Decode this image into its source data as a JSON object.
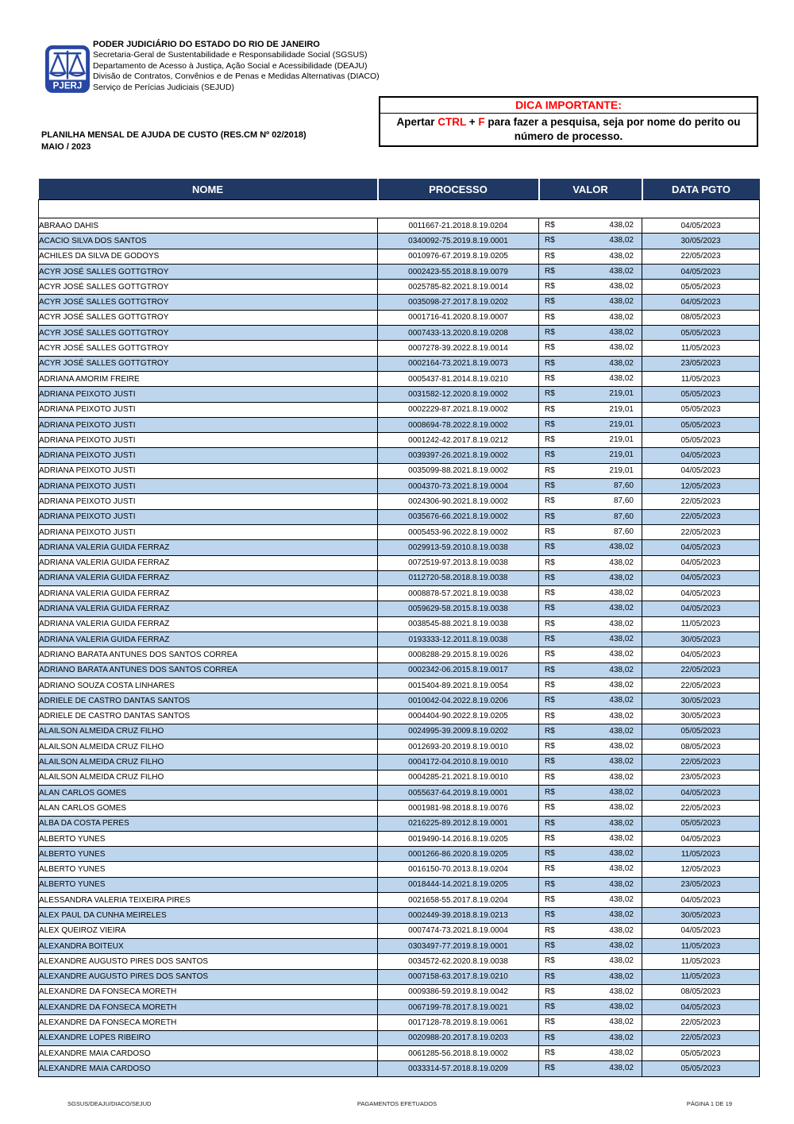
{
  "header": {
    "logo_text": "PJERJ",
    "org_line1": "PODER JUDICIÁRIO DO ESTADO DO RIO DE JANEIRO",
    "org_line2": "Secretaria-Geral de Sustentabilidade e Responsabilidade Social (SGSUS)",
    "org_line3": "Departamento de Acesso à Justiça, Ação Social e Acessibilidade (DEAJU)",
    "org_line4": "Divisão de Contratos, Convênios e de Penas e Medidas Alternativas (DIACO)",
    "org_line5": "Serviço de Perícias Judiciais (SEJUD)"
  },
  "dica": {
    "title": "DICA IMPORTANTE:",
    "seg1": "Apertar ",
    "seg2": "CTRL",
    "seg3": " + ",
    "seg4": "F",
    "seg5": " para fazer a pesquisa, seja por nome do perito ou número de processo."
  },
  "title": {
    "line1": "PLANILHA MENSAL DE AJUDA DE CUSTO (RES.CM Nº 02/2018)",
    "line2": "MAIO / 2023"
  },
  "table": {
    "columns": [
      "NOME",
      "PROCESSO",
      "VALOR",
      "DATA PGTO"
    ],
    "currency": "R$",
    "rows": [
      [
        "ABRAAO DAHIS",
        "0011667-21.2018.8.19.0204",
        "438,02",
        "04/05/2023"
      ],
      [
        "ACACIO SILVA DOS SANTOS",
        "0340092-75.2019.8.19.0001",
        "438,02",
        "30/05/2023"
      ],
      [
        "ACHILES DA SILVA DE GODOYS",
        "0010976-67.2019.8.19.0205",
        "438,02",
        "22/05/2023"
      ],
      [
        "ACYR JOSÉ SALLES GOTTGTROY",
        "0002423-55.2018.8.19.0079",
        "438,02",
        "04/05/2023"
      ],
      [
        "ACYR JOSÉ SALLES GOTTGTROY",
        "0025785-82.2021.8.19.0014",
        "438,02",
        "05/05/2023"
      ],
      [
        "ACYR JOSÉ SALLES GOTTGTROY",
        "0035098-27.2017.8.19.0202",
        "438,02",
        "04/05/2023"
      ],
      [
        "ACYR JOSÉ SALLES GOTTGTROY",
        "0001716-41.2020.8.19.0007",
        "438,02",
        "08/05/2023"
      ],
      [
        "ACYR JOSÉ SALLES GOTTGTROY",
        "0007433-13.2020.8.19.0208",
        "438,02",
        "05/05/2023"
      ],
      [
        "ACYR JOSÉ SALLES GOTTGTROY",
        "0007278-39.2022.8.19.0014",
        "438,02",
        "11/05/2023"
      ],
      [
        "ACYR JOSÉ SALLES GOTTGTROY",
        "0002164-73.2021.8.19.0073",
        "438,02",
        "23/05/2023"
      ],
      [
        "ADRIANA AMORIM FREIRE",
        "0005437-81.2014.8.19.0210",
        "438,02",
        "11/05/2023"
      ],
      [
        "ADRIANA PEIXOTO JUSTI",
        "0031582-12.2020.8.19.0002",
        "219,01",
        "05/05/2023"
      ],
      [
        "ADRIANA PEIXOTO JUSTI",
        "0002229-87.2021.8.19.0002",
        "219,01",
        "05/05/2023"
      ],
      [
        "ADRIANA PEIXOTO JUSTI",
        "0008694-78.2022.8.19.0002",
        "219,01",
        "05/05/2023"
      ],
      [
        "ADRIANA PEIXOTO JUSTI",
        "0001242-42.2017.8.19.0212",
        "219,01",
        "05/05/2023"
      ],
      [
        "ADRIANA PEIXOTO JUSTI",
        "0039397-26.2021.8.19.0002",
        "219,01",
        "04/05/2023"
      ],
      [
        "ADRIANA PEIXOTO JUSTI",
        "0035099-88.2021.8.19.0002",
        "219,01",
        "04/05/2023"
      ],
      [
        "ADRIANA PEIXOTO JUSTI",
        "0004370-73.2021.8.19.0004",
        "87,60",
        "12/05/2023"
      ],
      [
        "ADRIANA PEIXOTO JUSTI",
        "0024306-90.2021.8.19.0002",
        "87,60",
        "22/05/2023"
      ],
      [
        "ADRIANA PEIXOTO JUSTI",
        "0035676-66.2021.8.19.0002",
        "87,60",
        "22/05/2023"
      ],
      [
        "ADRIANA PEIXOTO JUSTI",
        "0005453-96.2022.8.19.0002",
        "87,60",
        "22/05/2023"
      ],
      [
        "ADRIANA VALERIA GUIDA FERRAZ",
        "0029913-59.2010.8.19.0038",
        "438,02",
        "04/05/2023"
      ],
      [
        "ADRIANA VALERIA GUIDA FERRAZ",
        "0072519-97.2013.8.19.0038",
        "438,02",
        "04/05/2023"
      ],
      [
        "ADRIANA VALERIA GUIDA FERRAZ",
        "0112720-58.2018.8.19.0038",
        "438,02",
        "04/05/2023"
      ],
      [
        "ADRIANA VALERIA GUIDA FERRAZ",
        "0008878-57.2021.8.19.0038",
        "438,02",
        "04/05/2023"
      ],
      [
        "ADRIANA VALERIA GUIDA FERRAZ",
        "0059629-58.2015.8.19.0038",
        "438,02",
        "04/05/2023"
      ],
      [
        "ADRIANA VALERIA GUIDA FERRAZ",
        "0038545-88.2021.8.19.0038",
        "438,02",
        "11/05/2023"
      ],
      [
        "ADRIANA VALERIA GUIDA FERRAZ",
        "0193333-12.2011.8.19.0038",
        "438,02",
        "30/05/2023"
      ],
      [
        "ADRIANO BARATA ANTUNES DOS SANTOS CORREA",
        "0008288-29.2015.8.19.0026",
        "438,02",
        "04/05/2023"
      ],
      [
        "ADRIANO BARATA ANTUNES DOS SANTOS CORREA",
        "0002342-06.2015.8.19.0017",
        "438,02",
        "22/05/2023"
      ],
      [
        "ADRIANO SOUZA COSTA LINHARES",
        "0015404-89.2021.8.19.0054",
        "438,02",
        "22/05/2023"
      ],
      [
        "ADRIELE DE CASTRO DANTAS SANTOS",
        "0010042-04.2022.8.19.0206",
        "438,02",
        "30/05/2023"
      ],
      [
        "ADRIELE DE CASTRO DANTAS SANTOS",
        "0004404-90.2022.8.19.0205",
        "438,02",
        "30/05/2023"
      ],
      [
        "ALAILSON ALMEIDA CRUZ FILHO",
        "0024995-39.2009.8.19.0202",
        "438,02",
        "05/05/2023"
      ],
      [
        "ALAILSON ALMEIDA CRUZ FILHO",
        "0012693-20.2019.8.19.0010",
        "438,02",
        "08/05/2023"
      ],
      [
        "ALAILSON ALMEIDA CRUZ FILHO",
        "0004172-04.2010.8.19.0010",
        "438,02",
        "22/05/2023"
      ],
      [
        "ALAILSON ALMEIDA CRUZ FILHO",
        "0004285-21.2021.8.19.0010",
        "438,02",
        "23/05/2023"
      ],
      [
        "ALAN CARLOS GOMES",
        "0055637-64.2019.8.19.0001",
        "438,02",
        "04/05/2023"
      ],
      [
        "ALAN CARLOS GOMES",
        "0001981-98.2018.8.19.0076",
        "438,02",
        "22/05/2023"
      ],
      [
        "ALBA DA COSTA PERES",
        "0216225-89.2012.8.19.0001",
        "438,02",
        "05/05/2023"
      ],
      [
        "ALBERTO YUNES",
        "0019490-14.2016.8.19.0205",
        "438,02",
        "04/05/2023"
      ],
      [
        "ALBERTO YUNES",
        "0001266-86.2020.8.19.0205",
        "438,02",
        "11/05/2023"
      ],
      [
        "ALBERTO YUNES",
        "0016150-70.2013.8.19.0204",
        "438,02",
        "12/05/2023"
      ],
      [
        "ALBERTO YUNES",
        "0018444-14.2021.8.19.0205",
        "438,02",
        "23/05/2023"
      ],
      [
        "ALESSANDRA VALERIA TEIXEIRA PIRES",
        "0021658-55.2017.8.19.0204",
        "438,02",
        "04/05/2023"
      ],
      [
        "ALEX PAUL DA CUNHA MEIRELES",
        "0002449-39.2018.8.19.0213",
        "438,02",
        "30/05/2023"
      ],
      [
        "ALEX QUEIROZ VIEIRA",
        "0007474-73.2021.8.19.0004",
        "438,02",
        "04/05/2023"
      ],
      [
        "ALEXANDRA BOITEUX",
        "0303497-77.2019.8.19.0001",
        "438,02",
        "11/05/2023"
      ],
      [
        "ALEXANDRE AUGUSTO PIRES DOS SANTOS",
        "0034572-62.2020.8.19.0038",
        "438,02",
        "11/05/2023"
      ],
      [
        "ALEXANDRE AUGUSTO PIRES DOS SANTOS",
        "0007158-63.2017.8.19.0210",
        "438,02",
        "11/05/2023"
      ],
      [
        "ALEXANDRE DA FONSECA MORETH",
        "0009386-59.2019.8.19.0042",
        "438,02",
        "08/05/2023"
      ],
      [
        "ALEXANDRE DA FONSECA MORETH",
        "0067199-78.2017.8.19.0021",
        "438,02",
        "04/05/2023"
      ],
      [
        "ALEXANDRE DA FONSECA MORETH",
        "0017128-78.2019.8.19.0061",
        "438,02",
        "22/05/2023"
      ],
      [
        "ALEXANDRE LOPES RIBEIRO",
        "0020988-20.2017.8.19.0203",
        "438,02",
        "22/05/2023"
      ],
      [
        "ALEXANDRE MAIA CARDOSO",
        "0061285-56.2018.8.19.0002",
        "438,02",
        "05/05/2023"
      ],
      [
        "ALEXANDRE MAIA CARDOSO",
        "0033314-57.2018.8.19.0209",
        "438,02",
        "05/05/2023"
      ]
    ]
  },
  "footer": {
    "left": "SGSUS/DEAJU/DIACO/SEJUD",
    "center": "PAGAMENTOS EFETUADOS",
    "right": "PÁGINA 1 DE 19"
  },
  "colors": {
    "table_header_bg": "#1F3864",
    "row_alt_bg": "#BDD6EE",
    "accent_red": "#FF0000",
    "logo_blue": "#2847A4"
  }
}
